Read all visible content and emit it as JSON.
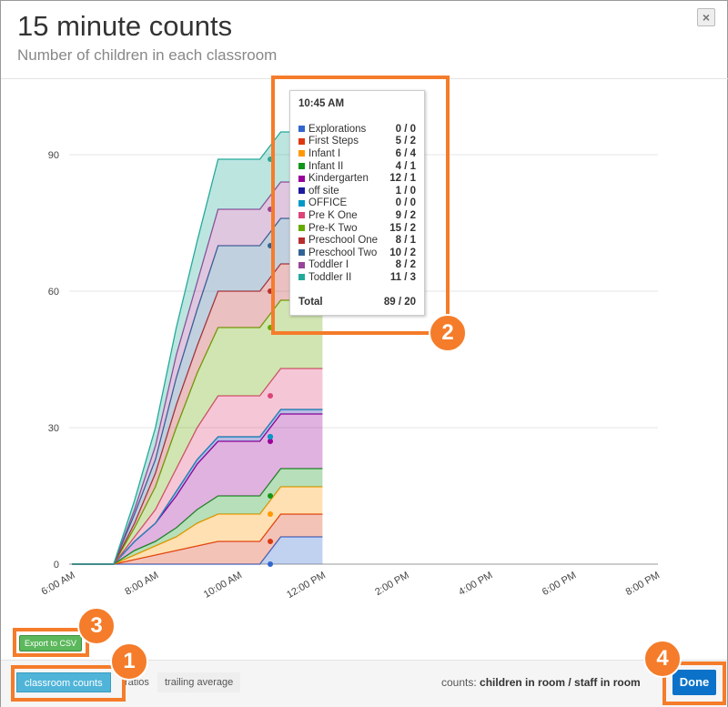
{
  "header": {
    "title": "15 minute counts",
    "subtitle": "Number of children in each classroom",
    "close_label": "×"
  },
  "tooltip": {
    "time": "10:45 AM",
    "total_label": "Total",
    "total_value": "89 / 20"
  },
  "export_label": "Export to CSV",
  "tabs": [
    {
      "label": "classroom counts",
      "active": true
    },
    {
      "label": "ratios"
    },
    {
      "label": "trailing average"
    }
  ],
  "legend_note": {
    "prefix": "counts:",
    "text": "children in room / staff in room"
  },
  "done_label": "Done",
  "annotations": [
    "1",
    "2",
    "3",
    "4"
  ],
  "chart_data": {
    "type": "area",
    "stacked": true,
    "x": [
      "6:00 AM",
      "6:30 AM",
      "7:00 AM",
      "7:30 AM",
      "8:00 AM",
      "8:30 AM",
      "9:00 AM",
      "9:30 AM",
      "10:00 AM",
      "10:30 AM",
      "11:00 AM",
      "11:30 AM",
      "12:00 PM"
    ],
    "x_ticks": [
      "6:00 AM",
      "8:00 AM",
      "10:00 AM",
      "12:00 PM",
      "2:00 PM",
      "4:00 PM",
      "6:00 PM",
      "8:00 PM"
    ],
    "y_ticks": [
      0,
      30,
      60,
      90
    ],
    "ylim": [
      0,
      90
    ],
    "grid": true,
    "series": [
      {
        "name": "Explorations",
        "color": "#3366cc",
        "tip": "0 / 0",
        "values": [
          0,
          0,
          0,
          0,
          0,
          0,
          0,
          0,
          0,
          0,
          6,
          6,
          6
        ]
      },
      {
        "name": "First Steps",
        "color": "#dc3912",
        "tip": "5 / 2",
        "values": [
          0,
          0,
          0,
          1,
          2,
          3,
          4,
          5,
          5,
          5,
          5,
          5,
          5
        ]
      },
      {
        "name": "Infant I",
        "color": "#ff9900",
        "tip": "6 / 4",
        "values": [
          0,
          0,
          0,
          1,
          2,
          3,
          5,
          6,
          6,
          6,
          6,
          6,
          6
        ]
      },
      {
        "name": "Infant II",
        "color": "#109618",
        "tip": "4 / 1",
        "values": [
          0,
          0,
          0,
          1,
          1,
          2,
          3,
          4,
          4,
          4,
          4,
          4,
          4
        ]
      },
      {
        "name": "Kindergarten",
        "color": "#990099",
        "tip": "12 / 1",
        "values": [
          0,
          0,
          0,
          2,
          4,
          7,
          10,
          12,
          12,
          12,
          12,
          12,
          12
        ]
      },
      {
        "name": "off site",
        "color": "#1c1c9c",
        "tip": "1 / 0",
        "values": [
          0,
          0,
          0,
          0,
          0,
          1,
          1,
          1,
          1,
          1,
          1,
          1,
          1
        ]
      },
      {
        "name": "OFFICE",
        "color": "#0099c6",
        "tip": "0 / 0",
        "values": [
          0,
          0,
          0,
          0,
          0,
          0,
          0,
          0,
          0,
          0,
          0,
          0,
          0
        ]
      },
      {
        "name": "Pre K One",
        "color": "#dd4477",
        "tip": "9 / 2",
        "values": [
          0,
          0,
          0,
          1,
          3,
          5,
          7,
          9,
          9,
          9,
          9,
          9,
          9
        ]
      },
      {
        "name": "Pre-K Two",
        "color": "#66aa00",
        "tip": "15 / 2",
        "values": [
          0,
          0,
          0,
          2,
          5,
          9,
          12,
          15,
          15,
          15,
          15,
          15,
          15
        ]
      },
      {
        "name": "Preschool One",
        "color": "#b82e2e",
        "tip": "8 / 1",
        "values": [
          0,
          0,
          0,
          1,
          3,
          5,
          6,
          8,
          8,
          8,
          8,
          8,
          8
        ]
      },
      {
        "name": "Preschool Two",
        "color": "#316395",
        "tip": "10 / 2",
        "values": [
          0,
          0,
          0,
          2,
          3,
          6,
          8,
          10,
          10,
          10,
          10,
          10,
          10
        ]
      },
      {
        "name": "Toddler I",
        "color": "#994499",
        "tip": "8 / 2",
        "values": [
          0,
          0,
          0,
          1,
          3,
          5,
          6,
          8,
          8,
          8,
          8,
          8,
          8
        ]
      },
      {
        "name": "Toddler II",
        "color": "#22aa99",
        "tip": "11 / 3",
        "values": [
          0,
          0,
          0,
          2,
          4,
          6,
          9,
          11,
          11,
          11,
          11,
          11,
          11
        ]
      }
    ]
  }
}
